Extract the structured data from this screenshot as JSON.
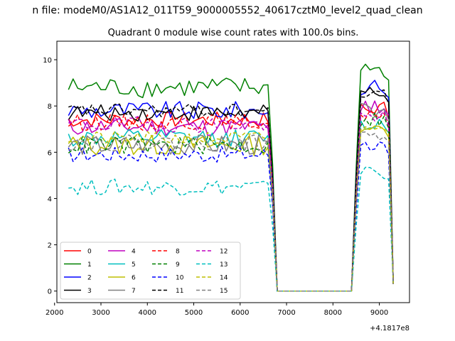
{
  "chart_data": {
    "type": "line",
    "suptitle": "n file: modeM0/AS1A12_011T59_9000005552_40617cztM0_level2_quad_clean",
    "title": "Quadrant 0 module wise count rates with 100.0s bins.",
    "xlabel": "",
    "ylabel": "",
    "x_offset_label": "+4.1817e8",
    "xlim": [
      2050,
      9650
    ],
    "ylim": [
      -0.5,
      10.8
    ],
    "xticks": [
      2000,
      3000,
      4000,
      5000,
      6000,
      7000,
      8000,
      9000
    ],
    "yticks": [
      0,
      2,
      4,
      6,
      8,
      10
    ],
    "grid": false,
    "legend_position": "lower-left",
    "legend_columns": 4,
    "x": {
      "segments": [
        {
          "start": 2300,
          "end": 6700,
          "step": 100
        },
        {
          "start": 6800,
          "end": 8400,
          "step": 100
        },
        {
          "start": 8500,
          "end": 9300,
          "step": 100
        }
      ]
    },
    "series": [
      {
        "name": "0",
        "color": "#ff0000",
        "dashed": false,
        "base": 7.4,
        "amp": 0.35,
        "hi": 7.9
      },
      {
        "name": "1",
        "color": "#008000",
        "dashed": false,
        "base": 8.8,
        "amp": 0.45,
        "hi": 9.6
      },
      {
        "name": "2",
        "color": "#0000ff",
        "dashed": false,
        "base": 7.8,
        "amp": 0.4,
        "hi": 8.8
      },
      {
        "name": "3",
        "color": "#000000",
        "dashed": false,
        "base": 7.7,
        "amp": 0.35,
        "hi": 8.6
      },
      {
        "name": "4",
        "color": "#bf00bf",
        "dashed": false,
        "base": 7.1,
        "amp": 0.4,
        "hi": 8.0
      },
      {
        "name": "5",
        "color": "#00bfbf",
        "dashed": false,
        "base": 6.6,
        "amp": 0.4,
        "hi": 7.2
      },
      {
        "name": "6",
        "color": "#bfbf00",
        "dashed": false,
        "base": 6.3,
        "amp": 0.45,
        "hi": 7.0
      },
      {
        "name": "7",
        "color": "#808080",
        "dashed": false,
        "base": 6.3,
        "amp": 0.45,
        "hi": 7.8
      },
      {
        "name": "8",
        "color": "#ff0000",
        "dashed": true,
        "base": 7.3,
        "amp": 0.35,
        "hi": 7.6
      },
      {
        "name": "9",
        "color": "#008000",
        "dashed": true,
        "base": 6.3,
        "amp": 0.4,
        "hi": 7.4
      },
      {
        "name": "10",
        "color": "#0000ff",
        "dashed": true,
        "base": 5.9,
        "amp": 0.35,
        "hi": 6.2
      },
      {
        "name": "11",
        "color": "#000000",
        "dashed": true,
        "base": 7.8,
        "amp": 0.3,
        "hi": 8.5
      },
      {
        "name": "12",
        "color": "#bf00bf",
        "dashed": true,
        "base": 7.2,
        "amp": 0.35,
        "hi": 7.5
      },
      {
        "name": "13",
        "color": "#00bfbf",
        "dashed": true,
        "base": 4.5,
        "amp": 0.35,
        "hi": 5.1
      },
      {
        "name": "14",
        "color": "#bfbf00",
        "dashed": true,
        "base": 6.6,
        "amp": 0.3,
        "hi": 7.2
      },
      {
        "name": "15",
        "color": "#808080",
        "dashed": true,
        "base": 6.4,
        "amp": 0.35,
        "hi": 6.8
      }
    ]
  }
}
